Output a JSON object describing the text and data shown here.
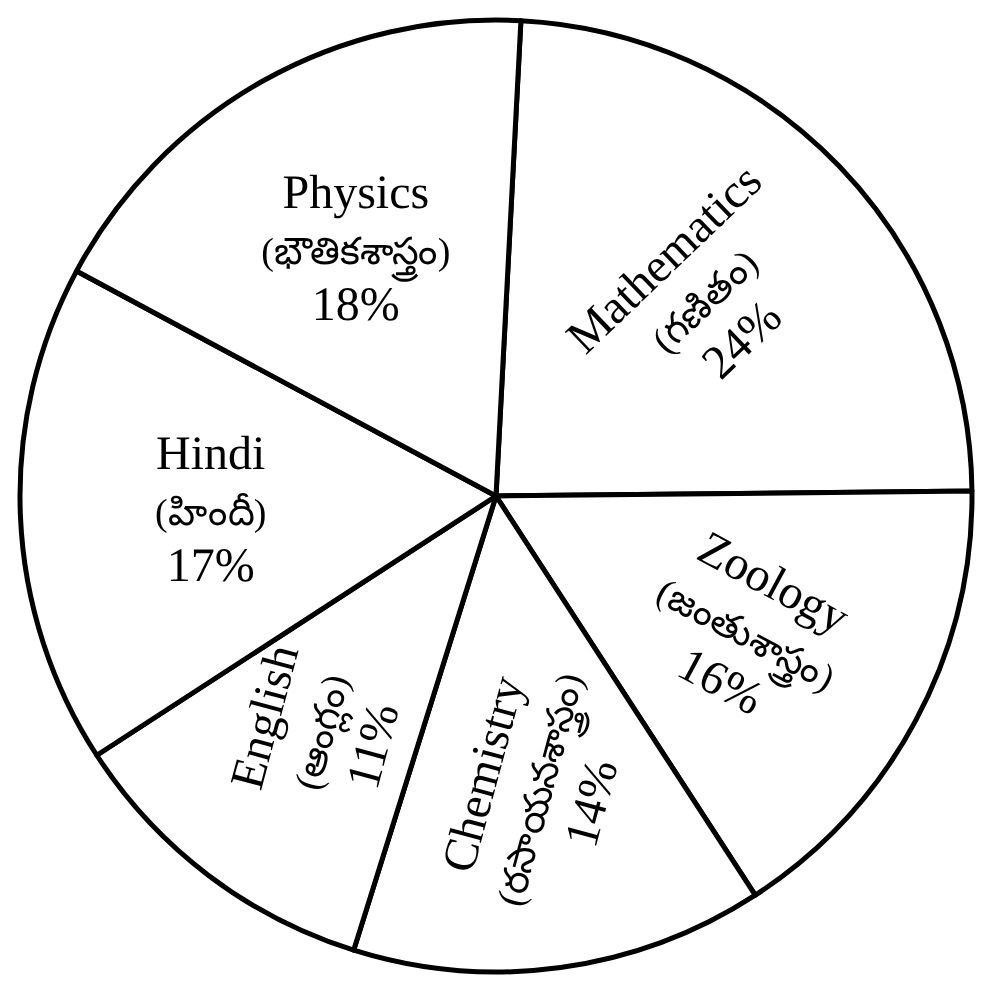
{
  "chart_data": {
    "type": "pie",
    "categories": [
      "Mathematics\n(గణితం)",
      "Zoology\n(జంతుశాస్త్రం)",
      "Chemistry\n(రసాయనశాస్త్రం)",
      "English\n(ఆంగ్లం)",
      "Hindi\n(హిందీ)",
      "Physics\n(భౌతికశాస్త్రం)"
    ],
    "values": [
      24,
      16,
      14,
      11,
      17,
      18
    ],
    "colors": [
      "#ffffff",
      "#ffffff",
      "#ffffff",
      "#ffffff",
      "#ffffff",
      "#ffffff"
    ],
    "value_labels": [
      "24%",
      "16%",
      "14%",
      "11%",
      "17%",
      "18%"
    ]
  }
}
